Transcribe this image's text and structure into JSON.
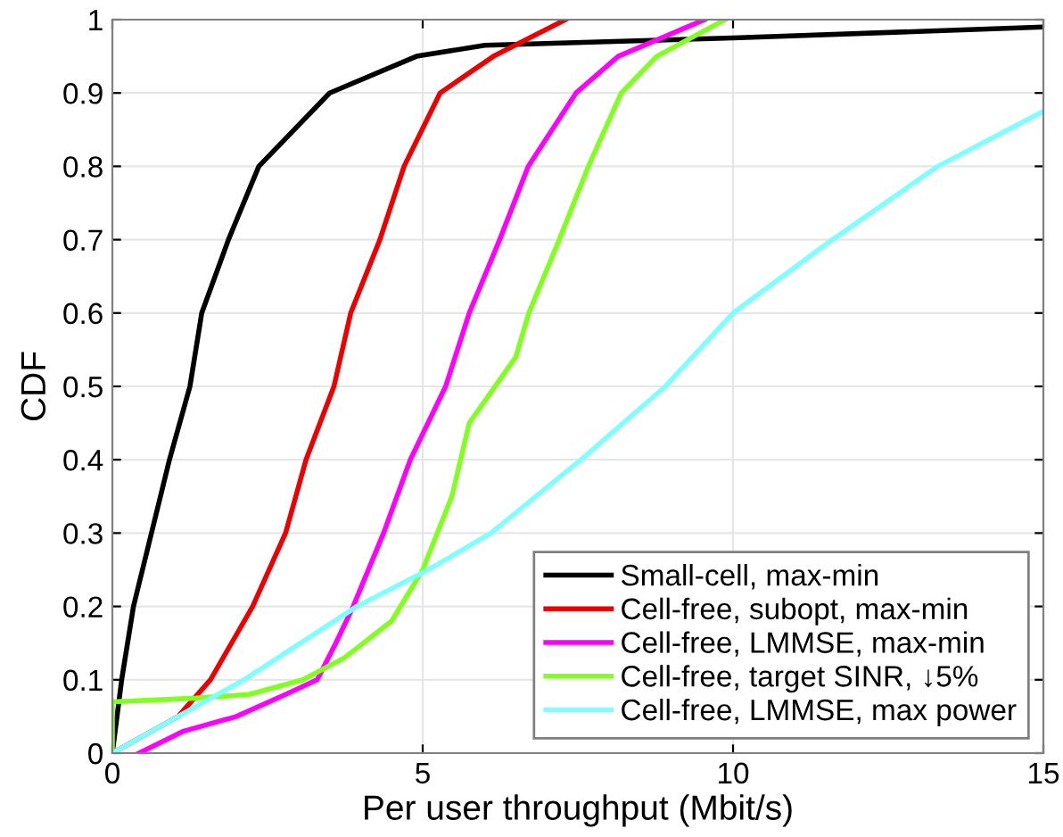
{
  "chart_data": {
    "type": "line",
    "xlabel": "Per user throughput (Mbit/s)",
    "ylabel": "CDF",
    "xlim": [
      0,
      15
    ],
    "ylim": [
      0,
      1
    ],
    "xticks": [
      0,
      5,
      10,
      15
    ],
    "yticks": [
      0,
      0.1,
      0.2,
      0.3,
      0.4,
      0.5,
      0.6,
      0.7,
      0.8,
      0.9,
      1
    ],
    "grid": true,
    "legend": "bottom right",
    "line_style": "solid",
    "marker": "none",
    "series": [
      {
        "name": "Small-cell, max-min",
        "color": "#000000",
        "x": [
          0,
          0.15,
          0.34,
          0.63,
          0.92,
          1.25,
          1.44,
          1.87,
          2.36,
          3.5,
          4.9,
          6,
          10,
          15
        ],
        "values": [
          0,
          0.1,
          0.2,
          0.3,
          0.4,
          0.5,
          0.6,
          0.7,
          0.8,
          0.9,
          0.95,
          0.965,
          0.975,
          0.99
        ]
      },
      {
        "name": "Cell-free, subopt, max-min",
        "color": "#ee0000",
        "x": [
          0,
          1.06,
          1.58,
          2.26,
          2.79,
          3.12,
          3.57,
          3.84,
          4.31,
          4.7,
          5.28,
          6.14,
          7.3
        ],
        "values": [
          0,
          0.05,
          0.1,
          0.2,
          0.3,
          0.4,
          0.5,
          0.6,
          0.7,
          0.8,
          0.9,
          0.95,
          1
        ]
      },
      {
        "name": "Cell-free, LMMSE, max-min",
        "color": "#ff00ff",
        "x": [
          0.43,
          1.15,
          2.0,
          2.79,
          3.3,
          3.6,
          3.88,
          4.37,
          4.8,
          5.37,
          5.75,
          6.24,
          6.7,
          7.47,
          8.15,
          9.54
        ],
        "values": [
          0,
          0.03,
          0.05,
          0.08,
          0.1,
          0.15,
          0.2,
          0.3,
          0.4,
          0.5,
          0.6,
          0.7,
          0.8,
          0.9,
          0.95,
          1
        ]
      },
      {
        "name": "Cell-free, target SINR, ↓5%",
        "color": "#80ff20",
        "x": [
          0,
          0,
          1.35,
          2.2,
          3.07,
          3.74,
          4.5,
          5.0,
          5.47,
          5.75,
          6.5,
          6.71,
          7.2,
          7.67,
          8.2,
          8.77,
          9.87
        ],
        "values": [
          0,
          0.07,
          0.075,
          0.08,
          0.1,
          0.13,
          0.18,
          0.25,
          0.35,
          0.45,
          0.54,
          0.6,
          0.7,
          0.8,
          0.9,
          0.95,
          1
        ]
      },
      {
        "name": "Cell-free, LMMSE, max power",
        "color": "#80ffff",
        "x": [
          0,
          2.12,
          3.94,
          5.09,
          6.1,
          7.55,
          8.91,
          10.0,
          11.6,
          13.3,
          15
        ],
        "values": [
          0,
          0.1,
          0.2,
          0.25,
          0.3,
          0.4,
          0.5,
          0.6,
          0.7,
          0.8,
          0.875
        ]
      }
    ]
  }
}
